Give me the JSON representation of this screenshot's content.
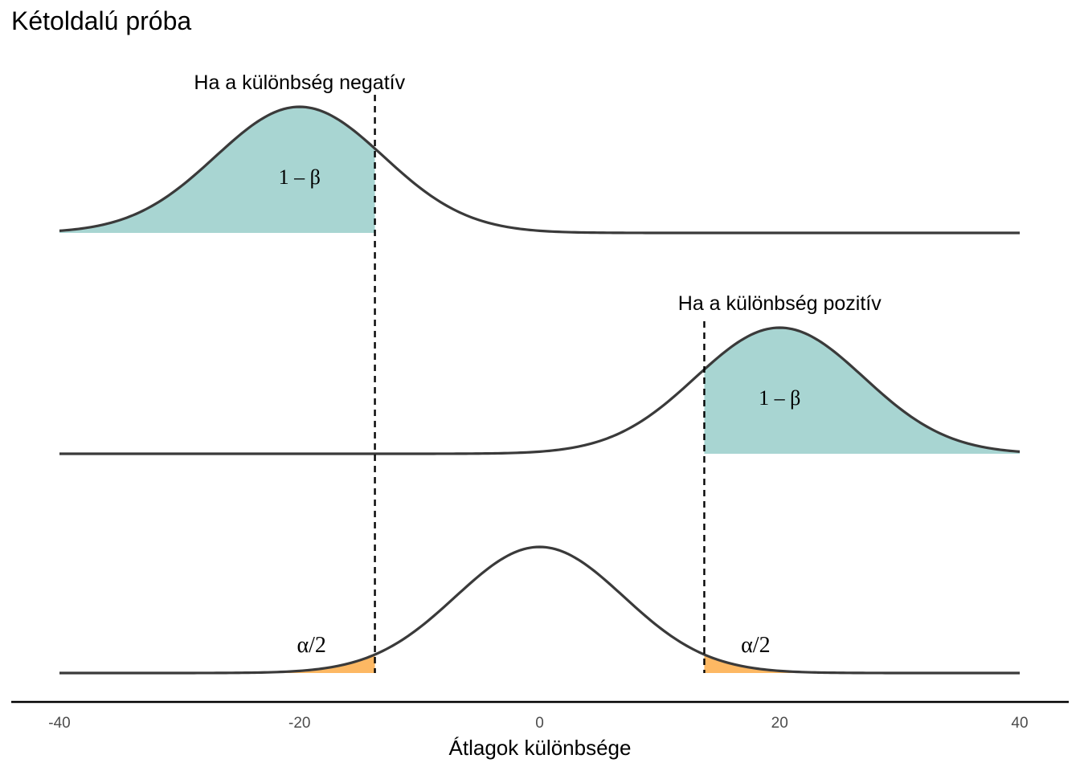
{
  "chart_data": {
    "type": "area",
    "title": "Kétoldalú próba",
    "xlabel": "Átlagok különbsége",
    "ylabel": "",
    "xlim": [
      -40,
      40
    ],
    "xticks": [
      -40,
      -20,
      0,
      20,
      40
    ],
    "xtick_labels": [
      "-40",
      "-20",
      "0",
      "20",
      "40"
    ],
    "critical_values": [
      -13.72,
      13.72
    ],
    "sd": 7,
    "series": [
      {
        "name": "negative",
        "row": 0,
        "mean": -20,
        "label": "Ha a különbség negatív",
        "shaded": "left",
        "shade_label": "1 – β",
        "shade_label_x": -20
      },
      {
        "name": "positive",
        "row": 1,
        "mean": 20,
        "label": "Ha a különbség pozitív",
        "shaded": "right",
        "shade_label": "1 – β",
        "shade_label_x": 20
      },
      {
        "name": "null",
        "row": 2,
        "mean": 0,
        "label": "",
        "shaded": "both",
        "shade_label": "α/2",
        "shade_label_x": [
          -19,
          18
        ]
      }
    ],
    "colors": {
      "power_fill": "#a8d5d2",
      "alpha_fill": "#fdb863",
      "curve": "#3a3a3a",
      "dashed_line": "#000000",
      "axis": "#000000",
      "tick_text": "#4d4d4d"
    }
  }
}
